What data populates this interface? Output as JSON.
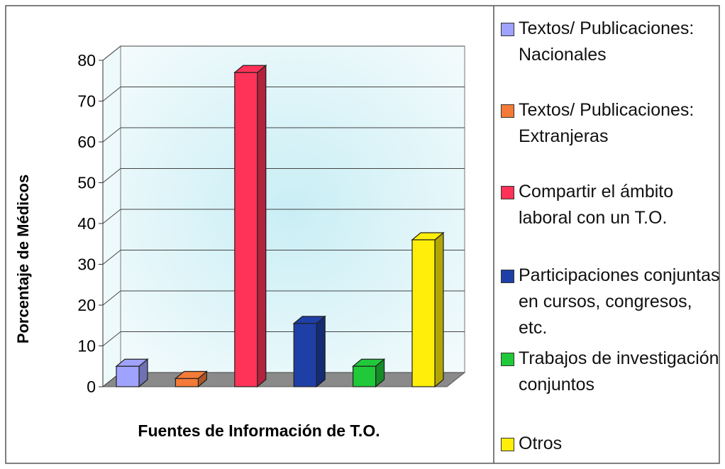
{
  "chart_data": {
    "type": "bar3d",
    "y_label": "Porcentaje de Médicos",
    "x_label": "Fuentes de Información de T.O.",
    "categories": [
      "Textos/ Publicaciones: Nacionales",
      "Textos/ Publicaciones: Extranjeras",
      "Compartir el ámbito laboral con un T.O.",
      "Participaciones conjuntas en cursos, congresos, etc.",
      "Trabajos de investigación conjuntos",
      "Otros"
    ],
    "colors": [
      "#9fa3ff",
      "#f47a38",
      "#ff3358",
      "#1e3fa6",
      "#20c93a",
      "#ffee0a"
    ],
    "values": [
      5,
      2,
      77,
      15.5,
      5,
      36
    ],
    "ylim": [
      0,
      80
    ],
    "yticks": [
      0,
      10,
      20,
      30,
      40,
      50,
      60,
      70,
      80
    ],
    "grid": true
  }
}
